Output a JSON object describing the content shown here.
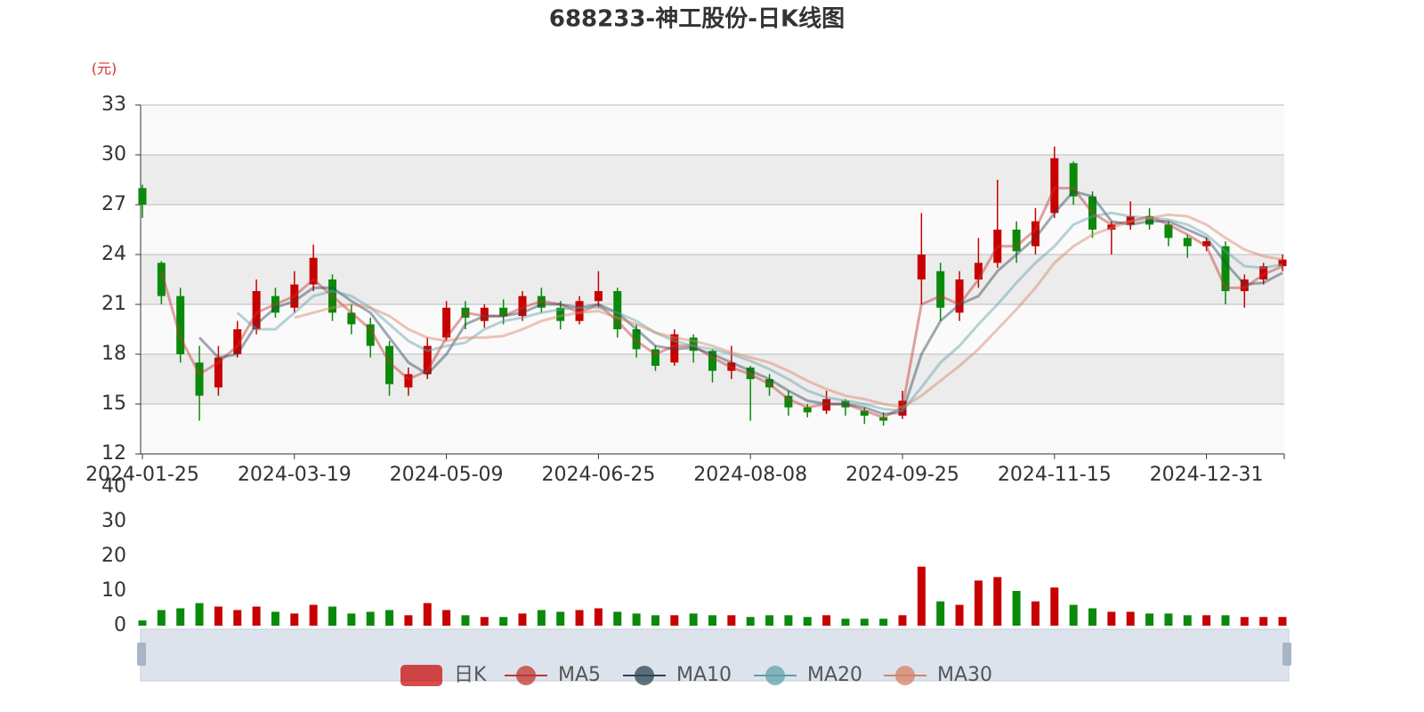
{
  "chart_data": {
    "type": "candlestick",
    "title": "688233-神工股份-日K线图",
    "y_unit": "(元)",
    "categories": [
      "2024-01-25",
      null,
      null,
      null,
      null,
      null,
      null,
      null,
      "2024-03-19",
      null,
      null,
      null,
      null,
      null,
      null,
      null,
      "2024-05-09",
      null,
      null,
      null,
      null,
      null,
      null,
      null,
      "2024-06-25",
      null,
      null,
      null,
      null,
      null,
      null,
      null,
      "2024-08-08",
      null,
      null,
      null,
      null,
      null,
      null,
      null,
      "2024-09-25",
      null,
      null,
      null,
      null,
      null,
      null,
      null,
      "2024-11-15",
      null,
      null,
      null,
      null,
      null,
      null,
      null,
      "2024-12-31",
      null,
      null,
      null,
      null
    ],
    "ylim": [
      12,
      33
    ],
    "yticks": [
      12,
      15,
      18,
      21,
      24,
      27,
      30,
      33
    ],
    "candle": {
      "name": "日K",
      "up_color": "#c80000",
      "down_color": "#0a8a0a",
      "open": [
        28,
        23.5,
        21.5,
        17.5,
        16,
        18,
        19.5,
        21.5,
        20.8,
        22.2,
        22.5,
        20.5,
        19.8,
        18.5,
        16,
        16.8,
        19,
        20.8,
        20,
        20.8,
        20.3,
        21.5,
        20.8,
        20,
        21.2,
        21.8,
        19.5,
        18.3,
        17.5,
        19,
        18.2,
        17,
        17.2,
        16.5,
        15.5,
        14.8,
        14.6,
        15.2,
        14.6,
        14.2,
        14.3,
        22.5,
        23,
        20.5,
        22.5,
        23.5,
        25.5,
        24.5,
        26.5,
        29.5,
        27.5,
        25.5,
        25.8,
        26.3,
        25.8,
        25,
        24.5,
        24.5,
        21.8,
        22.5,
        23.3
      ],
      "close": [
        27,
        21.5,
        18,
        15.5,
        17.8,
        19.5,
        21.8,
        20.5,
        22.2,
        23.8,
        20.5,
        19.8,
        18.5,
        16.2,
        16.8,
        18.5,
        20.8,
        20.2,
        20.8,
        20.3,
        21.5,
        20.8,
        20,
        21.2,
        21.8,
        19.5,
        18.3,
        17.3,
        19.2,
        18.2,
        17,
        17.5,
        16.5,
        16,
        14.8,
        14.5,
        15.3,
        14.8,
        14.3,
        14,
        15.2,
        24,
        20.8,
        22.5,
        23.5,
        25.5,
        24.2,
        26,
        29.8,
        27.5,
        25.5,
        25.8,
        26.3,
        25.8,
        25,
        24.5,
        24.8,
        21.8,
        22.5,
        23.3,
        23.7
      ],
      "low": [
        26.2,
        21,
        17.5,
        14,
        15.5,
        17.8,
        19.2,
        20.2,
        20.5,
        21.8,
        20,
        19.2,
        17.8,
        15.5,
        15.5,
        16.5,
        18.8,
        19.5,
        19.6,
        19.8,
        20,
        20.5,
        19.5,
        19.8,
        20.8,
        19,
        17.8,
        17,
        17.3,
        17.5,
        16.3,
        16.5,
        14,
        15.5,
        14.3,
        14.2,
        14.4,
        14.3,
        13.8,
        13.7,
        14.1,
        21,
        20,
        20,
        22,
        23.2,
        23.5,
        24,
        26.2,
        27,
        25,
        24,
        25.5,
        25.5,
        24.5,
        23.8,
        24.2,
        21,
        20.8,
        22.2,
        23
      ],
      "high": [
        28.2,
        23.6,
        22,
        18.5,
        18.5,
        20,
        22.5,
        22,
        23,
        24.6,
        22.8,
        21,
        20.2,
        18.8,
        17.2,
        19,
        21.2,
        21.2,
        21,
        21.3,
        21.8,
        22,
        21.2,
        21.5,
        23,
        22,
        19.8,
        18.5,
        19.5,
        19.2,
        18.3,
        18.5,
        17.3,
        16.8,
        15.8,
        15,
        15.8,
        15.3,
        14.8,
        14.5,
        15.8,
        26.5,
        23.5,
        23,
        25,
        28.5,
        26,
        26.8,
        30.5,
        29.6,
        27.8,
        26,
        27.2,
        26.8,
        26,
        25.2,
        25,
        24.8,
        22.8,
        23.5,
        24
      ]
    },
    "ma": [
      {
        "name": "MA5",
        "color": "#c23531",
        "values": [
          null,
          23,
          19,
          16.8,
          17.5,
          18.5,
          20.5,
          21,
          21.5,
          22.5,
          21.5,
          20.5,
          19.5,
          17.5,
          16.5,
          17,
          19,
          20.5,
          20.3,
          20.3,
          20.8,
          21.2,
          21,
          20.5,
          21,
          20,
          18.8,
          18,
          18.5,
          18.5,
          17.8,
          17.2,
          16.8,
          16.2,
          15.3,
          14.8,
          15,
          15,
          14.6,
          14.2,
          14.8,
          21,
          21.5,
          21,
          22.5,
          24.5,
          24.5,
          25.5,
          28,
          28,
          26.5,
          25.8,
          26,
          26.3,
          25.8,
          25.2,
          24.5,
          22,
          22,
          22.8,
          23.3
        ]
      },
      {
        "name": "MA10",
        "color": "#2f4554",
        "values": [
          null,
          null,
          null,
          19,
          17.8,
          18,
          19.8,
          20.8,
          21.2,
          22,
          22,
          21.2,
          20.5,
          19,
          17.5,
          16.8,
          18,
          19.8,
          20.3,
          20.3,
          20.5,
          21,
          21,
          20.8,
          21,
          20.5,
          19.5,
          18.5,
          18.3,
          18.4,
          18,
          17.5,
          17,
          16.5,
          15.8,
          15.2,
          15,
          15,
          14.8,
          14.4,
          14.5,
          18,
          20,
          21,
          21.5,
          23,
          24,
          25,
          26.5,
          27.8,
          27.5,
          26,
          25.8,
          26,
          26,
          25.5,
          25,
          23.5,
          22.2,
          22.3,
          22.9
        ]
      },
      {
        "name": "MA20",
        "color": "#61a0a8",
        "values": [
          null,
          null,
          null,
          null,
          null,
          20.5,
          19.5,
          19.5,
          20.5,
          21.5,
          21.8,
          21.5,
          20.8,
          19.8,
          18.8,
          18.2,
          18.5,
          18.7,
          19.5,
          20,
          20.2,
          20.5,
          20.7,
          20.8,
          20.8,
          20.5,
          20,
          19.3,
          18.8,
          18.5,
          18.3,
          18,
          17.6,
          17.1,
          16.5,
          15.8,
          15.4,
          15.2,
          15,
          14.7,
          14.6,
          16,
          17.5,
          18.5,
          19.8,
          21,
          22.3,
          23.5,
          24.5,
          25.8,
          26.3,
          26.5,
          26.3,
          26.2,
          26.1,
          25.8,
          25.2,
          24.2,
          23.3,
          23.2,
          23.4
        ]
      },
      {
        "name": "MA30",
        "color": "#d48265",
        "values": [
          null,
          null,
          null,
          null,
          null,
          null,
          null,
          null,
          20.2,
          20.5,
          20.8,
          21,
          20.8,
          20.3,
          19.5,
          19,
          18.8,
          19,
          19,
          19.1,
          19.5,
          20,
          20.3,
          20.5,
          20.6,
          20.2,
          19.8,
          19.3,
          19,
          18.8,
          18.5,
          18.1,
          17.8,
          17.5,
          17,
          16.4,
          15.9,
          15.5,
          15.3,
          15,
          14.8,
          15.5,
          16.4,
          17.3,
          18.3,
          19.5,
          20.7,
          22,
          23.5,
          24.5,
          25.2,
          25.6,
          26,
          26.2,
          26.4,
          26.3,
          25.8,
          25,
          24.3,
          23.9,
          23.7
        ]
      }
    ],
    "volume": {
      "values": [
        1.5,
        4.5,
        5,
        6.5,
        5.5,
        4.5,
        5.5,
        4,
        3.5,
        6,
        5.5,
        3.5,
        4,
        4.5,
        3,
        6.5,
        4.5,
        3,
        2.5,
        2.5,
        3.5,
        4.5,
        4,
        4.5,
        5,
        4,
        3.5,
        3,
        3,
        3.5,
        3,
        3,
        2.5,
        3,
        3,
        2.5,
        3,
        2,
        2,
        2,
        3,
        17,
        7,
        6,
        13,
        14,
        10,
        7,
        11,
        6,
        5,
        4,
        4,
        3.5,
        3.5,
        3,
        3,
        3,
        2.5,
        2.5,
        2.5
      ],
      "ylim": [
        0,
        40
      ],
      "yticks": [
        0,
        10,
        20,
        30,
        40
      ]
    }
  }
}
